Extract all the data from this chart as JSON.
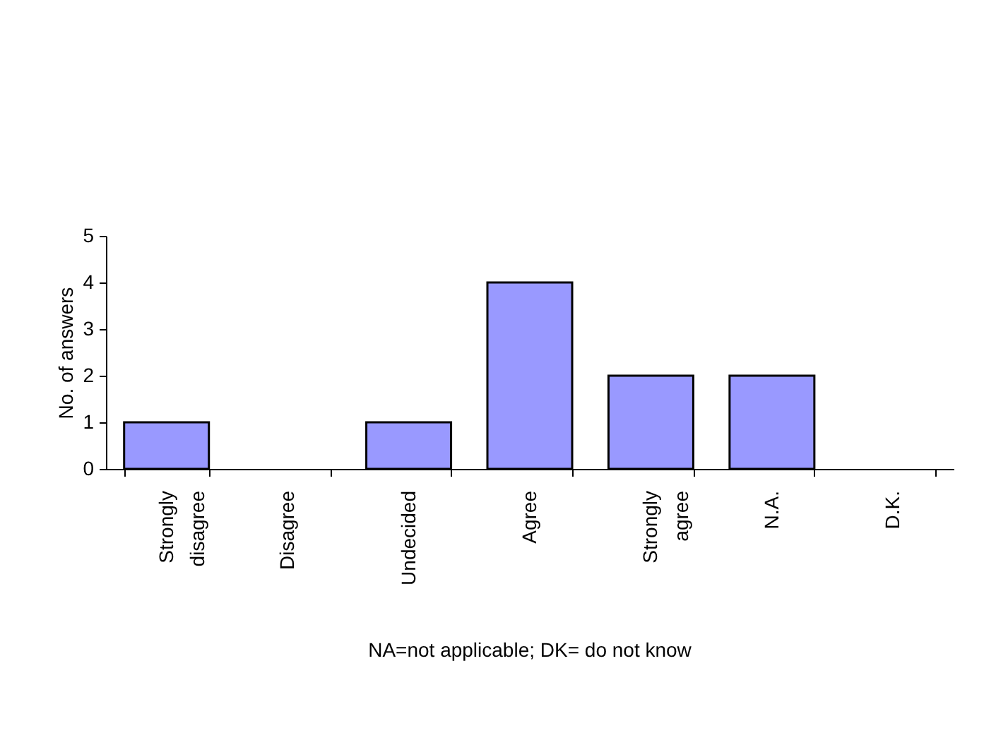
{
  "chart_data": {
    "type": "bar",
    "ylabel": "No. of answers",
    "categories": [
      "Strongly disagree",
      "Disagree",
      "Undecided",
      "Agree",
      "Strongly agree",
      "N.A.",
      "D.K."
    ],
    "values": [
      1,
      0,
      1,
      4,
      2,
      2,
      0
    ],
    "color": "#9999ff",
    "ylim": [
      0,
      5
    ],
    "yticks": [
      0,
      1,
      2,
      3,
      4,
      5
    ],
    "grid": false,
    "annotations": [
      "NA=not applicable; DK= do not know"
    ]
  }
}
